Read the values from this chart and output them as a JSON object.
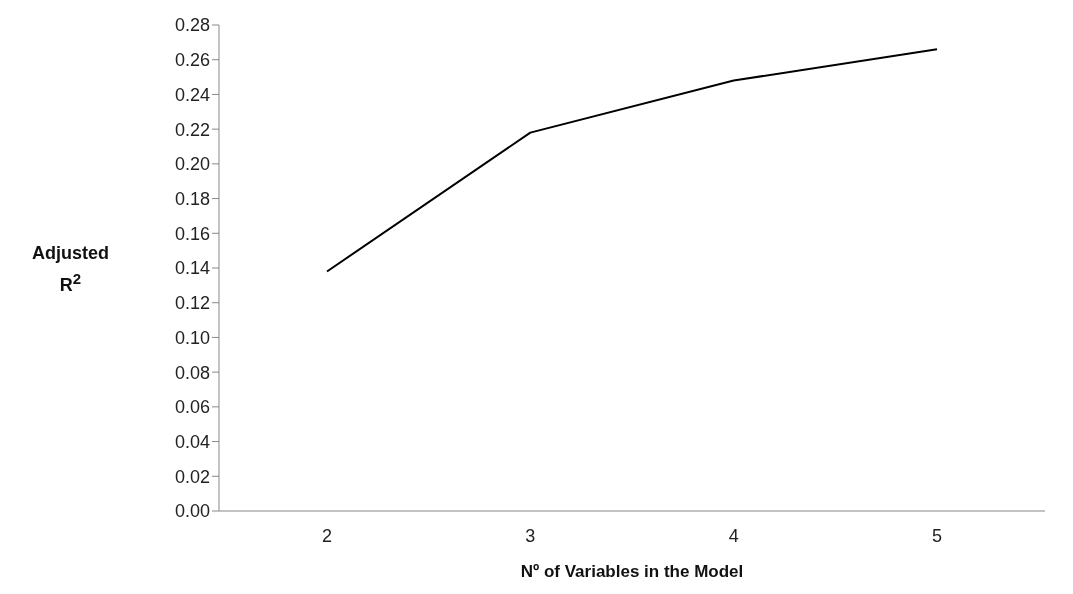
{
  "chart_data": {
    "type": "line",
    "xlabel": "Nº of Variables in the Model",
    "ylabel": "Adjusted R$^{2}$",
    "categories": [
      "2",
      "3",
      "4",
      "5"
    ],
    "series": [
      {
        "color": "#000000",
        "values": [
          0.138,
          0.218,
          0.248,
          0.266
        ]
      }
    ],
    "ylim": [
      0,
      0.28
    ],
    "yticks": [
      {
        "value": 0,
        "label": "0.00"
      },
      {
        "value": 0.02,
        "label": "0.02"
      },
      {
        "value": 0.04,
        "label": "0.04"
      },
      {
        "value": 0.06,
        "label": "0.06"
      },
      {
        "value": 0.08,
        "label": "0.08"
      },
      {
        "value": 0.1,
        "label": "0.10"
      },
      {
        "value": 0.12,
        "label": "0.12"
      },
      {
        "value": 0.14,
        "label": "0.14"
      },
      {
        "value": 0.16,
        "label": "0.16"
      },
      {
        "value": 0.18,
        "label": "0.18"
      },
      {
        "value": 0.2,
        "label": "0.20"
      },
      {
        "value": 0.22,
        "label": "0.22"
      },
      {
        "value": 0.24,
        "label": "0.24"
      },
      {
        "value": 0.26,
        "label": "0.26"
      },
      {
        "value": 0.28,
        "label": "0.28"
      }
    ],
    "grid": false,
    "legend": false,
    "marker": "none",
    "line_style": "solid"
  }
}
